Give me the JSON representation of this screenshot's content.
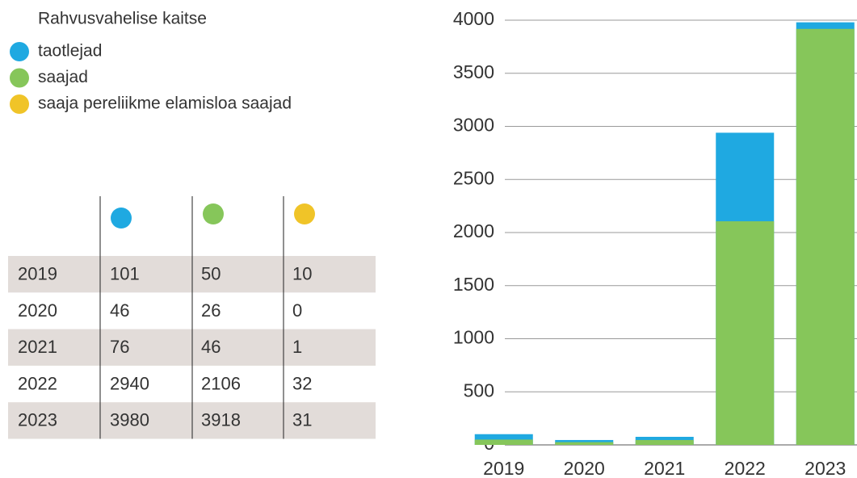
{
  "chart_data": {
    "type": "bar",
    "title": "Rahvusvahelise kaitse",
    "categories": [
      "2019",
      "2020",
      "2021",
      "2022",
      "2023"
    ],
    "series": [
      {
        "name": "taotlejad",
        "color": "#1fa9e1",
        "values": [
          101,
          46,
          76,
          2940,
          3980
        ]
      },
      {
        "name": "saajad",
        "color": "#86c65a",
        "values": [
          50,
          26,
          46,
          2106,
          3918
        ]
      },
      {
        "name": "saaja pereliikme elamisloa saajad",
        "color": "#f0c428",
        "values": [
          10,
          0,
          1,
          32,
          31
        ]
      }
    ],
    "ylim": [
      0,
      4000
    ],
    "yticks": [
      0,
      500,
      1000,
      1500,
      2000,
      2500,
      3000,
      3500,
      4000
    ],
    "grid": true
  }
}
